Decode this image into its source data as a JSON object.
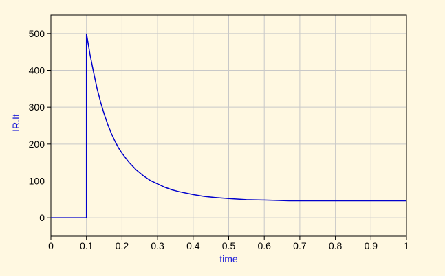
{
  "chart_data": {
    "type": "line",
    "xlabel": "time",
    "ylabel": "IR.It",
    "xlim": [
      0,
      1
    ],
    "ylim": [
      -50,
      550
    ],
    "xticks": [
      0,
      0.1,
      0.2,
      0.3,
      0.4,
      0.5,
      0.6,
      0.7,
      0.8,
      0.9,
      1
    ],
    "xtick_labels": [
      "0",
      "0.1",
      "0.2",
      "0.3",
      "0.4",
      "0.5",
      "0.6",
      "0.7",
      "0.8",
      "0.9",
      "1"
    ],
    "yticks": [
      0,
      100,
      200,
      300,
      400,
      500
    ],
    "ytick_labels": [
      "0",
      "100",
      "200",
      "300",
      "400",
      "500"
    ],
    "grid": true,
    "line_color": "#0000CC",
    "background_color": "#FFF8E1",
    "grid_color": "#C8C8C8",
    "series": [
      {
        "x": [
          0,
          0.1,
          0.1,
          0.11,
          0.12,
          0.13,
          0.14,
          0.15,
          0.16,
          0.17,
          0.18,
          0.19,
          0.2,
          0.22,
          0.24,
          0.26,
          0.28,
          0.3,
          0.32,
          0.34,
          0.36,
          0.38,
          0.4,
          0.43,
          0.46,
          0.5,
          0.55,
          0.6,
          0.67,
          0.7,
          0.8,
          0.9,
          1
        ],
        "y": [
          0,
          0,
          500,
          443,
          395,
          350,
          313,
          281,
          253,
          229,
          208,
          190,
          175,
          150,
          130,
          114,
          101,
          92,
          83,
          76,
          71,
          67,
          63,
          58,
          55,
          52,
          49,
          48,
          46,
          46,
          46,
          46,
          46
        ]
      }
    ]
  }
}
